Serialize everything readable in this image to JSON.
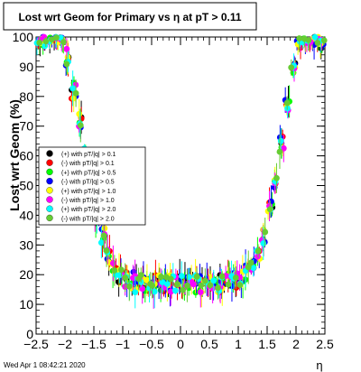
{
  "chart_data": {
    "type": "scatter",
    "title": "Lost wrt Geom for Primary vs   η at pT > 0.11",
    "xlabel": "η",
    "ylabel": "Lost wrt Geom (%)",
    "xlim": [
      -2.5,
      2.5
    ],
    "ylim": [
      0,
      100
    ],
    "x_ticks": [
      "−2.5",
      "−2",
      "−1.5",
      "−1",
      "−0.5",
      "0",
      "0.5",
      "1",
      "1.5",
      "2",
      "2.5"
    ],
    "y_ticks": [
      "0",
      "10",
      "20",
      "30",
      "40",
      "50",
      "60",
      "70",
      "80",
      "90",
      "100"
    ],
    "grid": false,
    "legend_position": "left-middle",
    "series": [
      {
        "name": "(+) with pT/|q| > 0.1",
        "color": "#000000"
      },
      {
        "name": "(-) with pT/|q| > 0.1",
        "color": "#ff0000"
      },
      {
        "name": "(+) with pT/|q| > 0.5",
        "color": "#00ff00"
      },
      {
        "name": "(-) with pT/|q| > 0.5",
        "color": "#0000ff"
      },
      {
        "name": "(+) with pT/|q| > 1.0",
        "color": "#ffff00"
      },
      {
        "name": "(-) with pT/|q| > 1.0",
        "color": "#ff00ff"
      },
      {
        "name": "(+) with pT/|q| > 2.0",
        "color": "#00ffff"
      },
      {
        "name": "(-) with pT/|q| > 2.0",
        "color": "#66cc33"
      }
    ],
    "profile": {
      "eta": [
        -2.45,
        -2.35,
        -2.25,
        -2.15,
        -2.05,
        -1.95,
        -1.85,
        -1.75,
        -1.65,
        -1.55,
        -1.45,
        -1.35,
        -1.25,
        -1.15,
        -1.05,
        -0.95,
        -0.85,
        -0.75,
        -0.65,
        -0.55,
        -0.45,
        -0.35,
        -0.25,
        -0.15,
        -0.05,
        0.05,
        0.15,
        0.25,
        0.35,
        0.45,
        0.55,
        0.65,
        0.75,
        0.85,
        0.95,
        1.05,
        1.15,
        1.25,
        1.35,
        1.45,
        1.55,
        1.65,
        1.75,
        1.85,
        1.95,
        2.05,
        2.15,
        2.25,
        2.35,
        2.45
      ],
      "lost_percent": [
        98,
        99,
        99,
        99,
        99,
        93,
        82,
        72,
        60,
        50,
        40,
        33,
        27,
        22,
        19,
        18,
        18,
        17,
        17,
        17,
        17,
        17,
        17,
        17,
        17,
        17,
        17,
        17,
        17,
        17,
        17,
        17,
        17,
        18,
        18,
        19,
        21,
        24,
        28,
        33,
        42,
        52,
        64,
        77,
        90,
        98,
        99,
        99,
        99,
        98
      ],
      "spread": [
        2,
        2,
        1,
        1,
        1,
        3,
        3,
        3,
        3,
        3,
        3,
        3,
        3,
        3,
        3,
        3,
        3,
        3,
        3,
        3,
        3,
        3,
        3,
        3,
        3,
        3,
        3,
        3,
        3,
        3,
        3,
        3,
        3,
        3,
        3,
        3,
        3,
        3,
        3,
        3,
        3,
        3,
        3,
        3,
        3,
        2,
        1,
        1,
        2,
        2
      ]
    }
  },
  "footer": {
    "timestamp": "Wed Apr  1 08:42:21 2020"
  }
}
